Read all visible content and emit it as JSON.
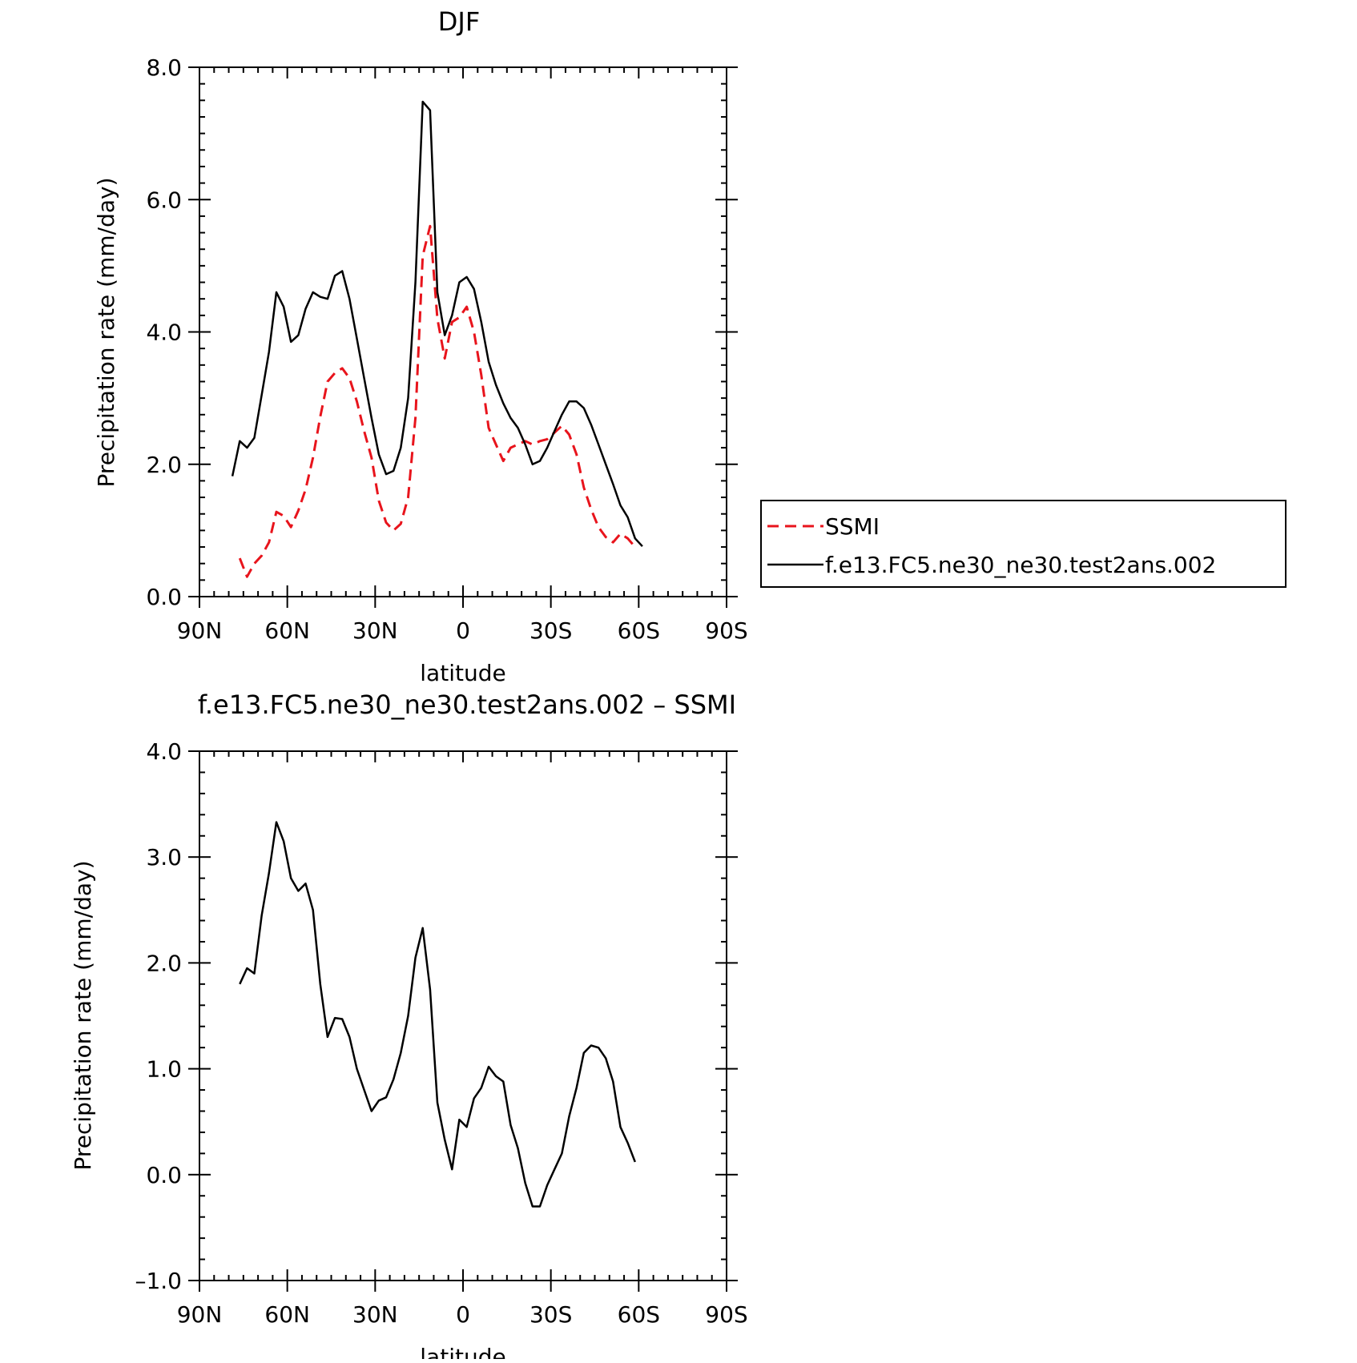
{
  "chart_data": [
    {
      "type": "line",
      "title": "DJF",
      "xlabel": "latitude",
      "ylabel": "Precipitation rate (mm/day)",
      "xlim": [
        90,
        -90
      ],
      "ylim": [
        0.0,
        8.0
      ],
      "x_tick_values": [
        90,
        60,
        30,
        0,
        -30,
        -60,
        -90
      ],
      "x_tick_labels": [
        "90N",
        "60N",
        "30N",
        "0",
        "30S",
        "60S",
        "90S"
      ],
      "y_tick_values": [
        0,
        2,
        4,
        6,
        8
      ],
      "y_tick_labels": [
        "0.0",
        "2.0",
        "4.0",
        "6.0",
        "8.0"
      ],
      "legend_position": "right",
      "series": [
        {
          "name": "SSMI",
          "color": "#e8141c",
          "dash": "dashed",
          "points": [
            [
              76.25,
              0.58
            ],
            [
              73.75,
              0.3
            ],
            [
              71.25,
              0.5
            ],
            [
              68.75,
              0.62
            ],
            [
              66.25,
              0.82
            ],
            [
              63.75,
              1.28
            ],
            [
              61.25,
              1.22
            ],
            [
              58.75,
              1.05
            ],
            [
              56.25,
              1.3
            ],
            [
              53.75,
              1.62
            ],
            [
              51.25,
              2.1
            ],
            [
              48.75,
              2.72
            ],
            [
              46.25,
              3.25
            ],
            [
              43.75,
              3.38
            ],
            [
              41.25,
              3.45
            ],
            [
              38.75,
              3.3
            ],
            [
              36.25,
              2.95
            ],
            [
              33.75,
              2.5
            ],
            [
              31.25,
              2.1
            ],
            [
              28.75,
              1.45
            ],
            [
              26.25,
              1.12
            ],
            [
              23.75,
              1.0
            ],
            [
              21.25,
              1.1
            ],
            [
              18.75,
              1.5
            ],
            [
              16.25,
              2.7
            ],
            [
              13.75,
              5.15
            ],
            [
              11.25,
              5.6
            ],
            [
              8.75,
              4.2
            ],
            [
              6.25,
              3.6
            ],
            [
              3.75,
              4.15
            ],
            [
              1.25,
              4.22
            ],
            [
              -1.25,
              4.38
            ],
            [
              -3.75,
              4.0
            ],
            [
              -6.25,
              3.35
            ],
            [
              -8.75,
              2.55
            ],
            [
              -11.25,
              2.3
            ],
            [
              -13.75,
              2.05
            ],
            [
              -16.25,
              2.25
            ],
            [
              -18.75,
              2.3
            ],
            [
              -21.25,
              2.35
            ],
            [
              -23.75,
              2.3
            ],
            [
              -26.25,
              2.35
            ],
            [
              -28.75,
              2.38
            ],
            [
              -31.25,
              2.48
            ],
            [
              -33.75,
              2.58
            ],
            [
              -36.25,
              2.45
            ],
            [
              -38.75,
              2.15
            ],
            [
              -41.25,
              1.65
            ],
            [
              -43.75,
              1.32
            ],
            [
              -46.25,
              1.05
            ],
            [
              -48.75,
              0.9
            ],
            [
              -51.25,
              0.82
            ],
            [
              -53.75,
              0.95
            ],
            [
              -56.25,
              0.88
            ],
            [
              -58.75,
              0.75
            ]
          ]
        },
        {
          "name": "f.e13.FC5.ne30_ne30.test2ans.002",
          "color": "#000000",
          "dash": "solid",
          "points": [
            [
              78.75,
              1.82
            ],
            [
              76.25,
              2.35
            ],
            [
              73.75,
              2.25
            ],
            [
              71.25,
              2.4
            ],
            [
              68.75,
              3.05
            ],
            [
              66.25,
              3.7
            ],
            [
              63.75,
              4.6
            ],
            [
              61.25,
              4.38
            ],
            [
              58.75,
              3.85
            ],
            [
              56.25,
              3.95
            ],
            [
              53.75,
              4.35
            ],
            [
              51.25,
              4.6
            ],
            [
              48.75,
              4.53
            ],
            [
              46.25,
              4.5
            ],
            [
              43.75,
              4.85
            ],
            [
              41.25,
              4.92
            ],
            [
              38.75,
              4.5
            ],
            [
              36.25,
              3.9
            ],
            [
              33.75,
              3.3
            ],
            [
              31.25,
              2.7
            ],
            [
              28.75,
              2.15
            ],
            [
              26.25,
              1.85
            ],
            [
              23.75,
              1.9
            ],
            [
              21.25,
              2.25
            ],
            [
              18.75,
              3.0
            ],
            [
              16.25,
              4.75
            ],
            [
              13.75,
              7.48
            ],
            [
              11.25,
              7.35
            ],
            [
              8.75,
              4.6
            ],
            [
              6.25,
              3.95
            ],
            [
              3.75,
              4.25
            ],
            [
              1.25,
              4.75
            ],
            [
              -1.25,
              4.83
            ],
            [
              -3.75,
              4.65
            ],
            [
              -6.25,
              4.15
            ],
            [
              -8.75,
              3.55
            ],
            [
              -11.25,
              3.2
            ],
            [
              -13.75,
              2.92
            ],
            [
              -16.25,
              2.7
            ],
            [
              -18.75,
              2.55
            ],
            [
              -21.25,
              2.3
            ],
            [
              -23.75,
              2.0
            ],
            [
              -26.25,
              2.05
            ],
            [
              -28.75,
              2.25
            ],
            [
              -31.25,
              2.5
            ],
            [
              -33.75,
              2.75
            ],
            [
              -36.25,
              2.95
            ],
            [
              -38.75,
              2.95
            ],
            [
              -41.25,
              2.85
            ],
            [
              -43.75,
              2.6
            ],
            [
              -46.25,
              2.3
            ],
            [
              -48.75,
              2.0
            ],
            [
              -51.25,
              1.7
            ],
            [
              -53.75,
              1.38
            ],
            [
              -56.25,
              1.2
            ],
            [
              -58.75,
              0.88
            ],
            [
              -61.25,
              0.76
            ]
          ]
        }
      ]
    },
    {
      "type": "line",
      "title": "f.e13.FC5.ne30_ne30.test2ans.002 – SSMI",
      "xlabel": "latitude",
      "ylabel": "Precipitation rate (mm/day)",
      "xlim": [
        90,
        -90
      ],
      "ylim": [
        -1.0,
        4.0
      ],
      "x_tick_values": [
        90,
        60,
        30,
        0,
        -30,
        -60,
        -90
      ],
      "x_tick_labels": [
        "90N",
        "60N",
        "30N",
        "0",
        "30S",
        "60S",
        "90S"
      ],
      "y_tick_values": [
        -1,
        0,
        1,
        2,
        3,
        4
      ],
      "y_tick_labels": [
        "–1.0",
        "0.0",
        "1.0",
        "2.0",
        "3.0",
        "4.0"
      ],
      "series": [
        {
          "color": "#000000",
          "dash": "solid",
          "points": [
            [
              76.25,
              1.8
            ],
            [
              73.75,
              1.95
            ],
            [
              71.25,
              1.9
            ],
            [
              68.75,
              2.45
            ],
            [
              66.25,
              2.85
            ],
            [
              63.75,
              3.33
            ],
            [
              61.25,
              3.15
            ],
            [
              58.75,
              2.8
            ],
            [
              56.25,
              2.68
            ],
            [
              53.75,
              2.75
            ],
            [
              51.25,
              2.5
            ],
            [
              48.75,
              1.8
            ],
            [
              46.25,
              1.3
            ],
            [
              43.75,
              1.48
            ],
            [
              41.25,
              1.47
            ],
            [
              38.75,
              1.3
            ],
            [
              36.25,
              1.0
            ],
            [
              33.75,
              0.8
            ],
            [
              31.25,
              0.6
            ],
            [
              28.75,
              0.7
            ],
            [
              26.25,
              0.73
            ],
            [
              23.75,
              0.9
            ],
            [
              21.25,
              1.15
            ],
            [
              18.75,
              1.5
            ],
            [
              16.25,
              2.05
            ],
            [
              13.75,
              2.33
            ],
            [
              11.25,
              1.75
            ],
            [
              8.75,
              0.68
            ],
            [
              6.25,
              0.33
            ],
            [
              3.75,
              0.05
            ],
            [
              1.25,
              0.52
            ],
            [
              -1.25,
              0.45
            ],
            [
              -3.75,
              0.72
            ],
            [
              -6.25,
              0.82
            ],
            [
              -8.75,
              1.02
            ],
            [
              -11.25,
              0.93
            ],
            [
              -13.75,
              0.88
            ],
            [
              -16.25,
              0.47
            ],
            [
              -18.75,
              0.25
            ],
            [
              -21.25,
              -0.08
            ],
            [
              -23.75,
              -0.3
            ],
            [
              -26.25,
              -0.3
            ],
            [
              -28.75,
              -0.1
            ],
            [
              -31.25,
              0.05
            ],
            [
              -33.75,
              0.2
            ],
            [
              -36.25,
              0.55
            ],
            [
              -38.75,
              0.82
            ],
            [
              -41.25,
              1.15
            ],
            [
              -43.75,
              1.22
            ],
            [
              -46.25,
              1.2
            ],
            [
              -48.75,
              1.1
            ],
            [
              -51.25,
              0.88
            ],
            [
              -53.75,
              0.45
            ],
            [
              -56.25,
              0.3
            ],
            [
              -58.75,
              0.12
            ]
          ]
        }
      ]
    }
  ]
}
